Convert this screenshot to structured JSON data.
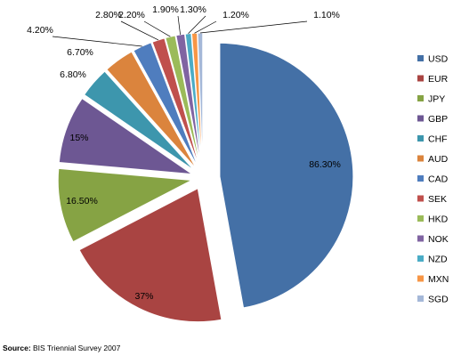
{
  "chart_data": {
    "type": "pie",
    "exploded": true,
    "series": [
      {
        "label": "USD",
        "value": 86.3,
        "display": "86.30%",
        "color": "#4470A6"
      },
      {
        "label": "EUR",
        "value": 37,
        "display": "37%",
        "color": "#A94442"
      },
      {
        "label": "JPY",
        "value": 16.5,
        "display": "16.50%",
        "color": "#86A344"
      },
      {
        "label": "GBP",
        "value": 15,
        "display": "15%",
        "color": "#6D5793"
      },
      {
        "label": "CHF",
        "value": 6.8,
        "display": "6.80%",
        "color": "#3D96AD"
      },
      {
        "label": "AUD",
        "value": 6.7,
        "display": "6.70%",
        "color": "#DB843D"
      },
      {
        "label": "CAD",
        "value": 4.2,
        "display": "4.20%",
        "color": "#4F7DBE"
      },
      {
        "label": "SEK",
        "value": 2.8,
        "display": "2.80%",
        "color": "#C0504D"
      },
      {
        "label": "HKD",
        "value": 2.2,
        "display": "2.20%",
        "color": "#9BBB59"
      },
      {
        "label": "NOK",
        "value": 1.9,
        "display": "1.90%",
        "color": "#8064A2"
      },
      {
        "label": "NZD",
        "value": 1.3,
        "display": "1.30%",
        "color": "#4BACC6"
      },
      {
        "label": "MXN",
        "value": 1.2,
        "display": "1.20%",
        "color": "#F79646"
      },
      {
        "label": "SGD",
        "value": 1.1,
        "display": "1.10%",
        "color": "#A5B8D8"
      }
    ],
    "legend_position": "right"
  },
  "source": {
    "label": "Source:",
    "text": " BIS Triennial Survey 2007"
  }
}
